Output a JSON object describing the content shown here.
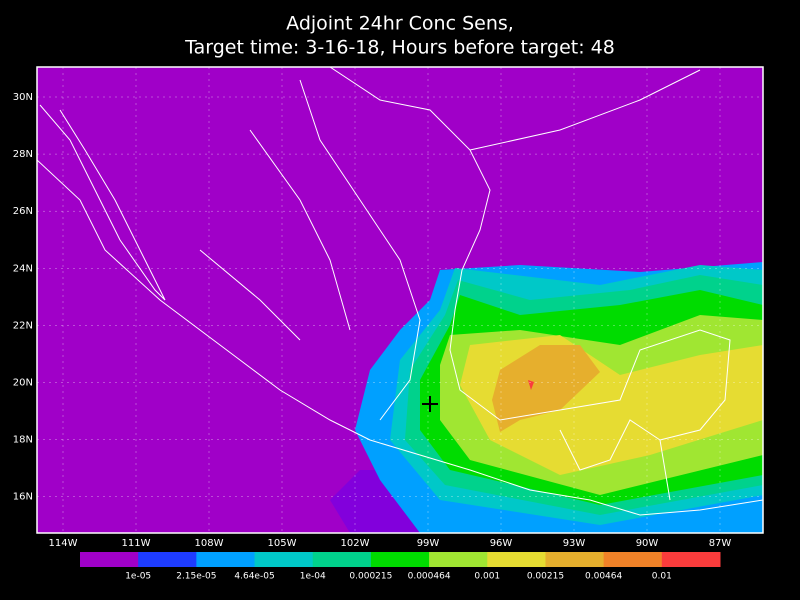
{
  "header": {
    "title": "Adjoint 24hr Conc Sens,",
    "subtitle": "Target time: 3-16-18, Hours before target: 48"
  },
  "map": {
    "lon_labels": [
      "114W",
      "111W",
      "108W",
      "105W",
      "102W",
      "99W",
      "96W",
      "93W",
      "90W",
      "87W"
    ],
    "lat_labels": [
      "30N",
      "28N",
      "26N",
      "24N",
      "22N",
      "20N",
      "18N",
      "16N"
    ]
  },
  "colorbar": {
    "colors": [
      "#a000c8",
      "#8200dc",
      "#1e3cff",
      "#00a0ff",
      "#00c8c8",
      "#00d28c",
      "#00dc00",
      "#a0e632",
      "#e6dc32",
      "#e6af2d",
      "#f08228",
      "#fa3c3c",
      "#f00082"
    ],
    "labels": [
      "1e-05",
      "2.15e-05",
      "4.64e-05",
      "1e-04",
      "0.000215",
      "0.000464",
      "0.001",
      "0.00215",
      "0.00464",
      "0.01"
    ]
  }
}
